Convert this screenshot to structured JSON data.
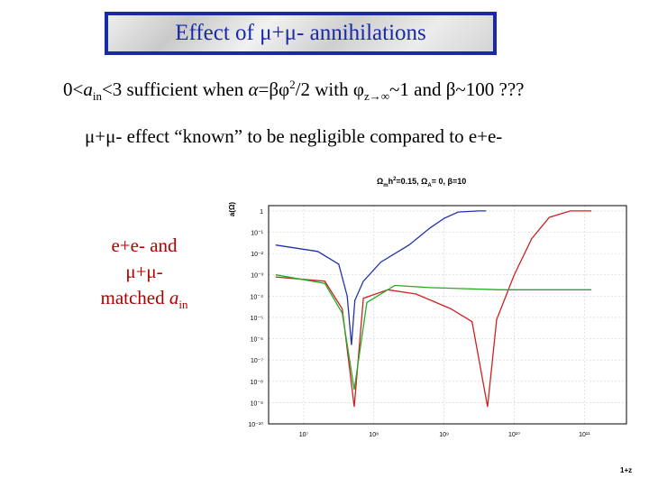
{
  "slide": {
    "title": "Effect of μ+μ- annihilations",
    "line1": {
      "a": "0<",
      "a_sym": "a",
      "a_sub": "in",
      "b": "<3 sufficient when ",
      "alpha": "α",
      "eq": "=βφ",
      "sq": "2",
      "c": "/2 with ",
      "phi": "φ",
      "phi_sub": "z→∞",
      "d": "~1 and ",
      "beta": "β",
      "e": "~100 ???"
    },
    "line2": "μ+μ- effect “known” to be negligible compared to e+e-",
    "side_note": {
      "l1": "e+e- and",
      "l2": "μ+μ-",
      "l3": "matched ",
      "a_sym": "a",
      "a_sub": "in"
    }
  },
  "chart_data": {
    "type": "line",
    "title_parts": {
      "a": "Ω",
      "a_sub": "m",
      "b": "h",
      "b_sup": "2",
      "c": "=0.15, Ω",
      "c_sub": "A",
      "d": "= 0, β=10"
    },
    "ylabel": "a(Ω)",
    "xlabel": "1+z",
    "y_ticks": [
      "1",
      "10⁻¹",
      "10⁻²",
      "10⁻³",
      "10⁻⁴",
      "10⁻⁵",
      "10⁻⁶",
      "10⁻⁷",
      "10⁻⁸",
      "10⁻⁹",
      "10⁻¹⁰"
    ],
    "x_ticks": [
      "10⁷",
      "10⁸",
      "10⁹",
      "10¹⁰",
      "10¹¹"
    ],
    "xlim_log10": [
      6.5,
      11.6
    ],
    "ylim_log10": [
      -10,
      0.25
    ],
    "grid": true,
    "series": [
      {
        "color": "#2233aa",
        "points": [
          [
            6.6,
            -1.6
          ],
          [
            7.2,
            -1.9
          ],
          [
            7.5,
            -2.5
          ],
          [
            7.62,
            -4.0
          ],
          [
            7.68,
            -6.3
          ],
          [
            7.73,
            -4.2
          ],
          [
            7.85,
            -3.3
          ],
          [
            8.1,
            -2.4
          ],
          [
            8.5,
            -1.6
          ],
          [
            8.8,
            -0.8
          ],
          [
            9.0,
            -0.35
          ],
          [
            9.2,
            -0.05
          ],
          [
            9.5,
            0
          ],
          [
            9.6,
            0
          ]
        ]
      },
      {
        "color": "#cc2222",
        "points": [
          [
            6.6,
            -3.1
          ],
          [
            7.3,
            -3.3
          ],
          [
            7.55,
            -4.6
          ],
          [
            7.72,
            -9.2
          ],
          [
            7.85,
            -4.1
          ],
          [
            8.2,
            -3.7
          ],
          [
            8.6,
            -3.9
          ],
          [
            9.1,
            -4.6
          ],
          [
            9.4,
            -5.2
          ],
          [
            9.62,
            -9.2
          ],
          [
            9.75,
            -5.1
          ],
          [
            10.0,
            -3.0
          ],
          [
            10.25,
            -1.3
          ],
          [
            10.5,
            -0.3
          ],
          [
            10.8,
            0
          ],
          [
            11.1,
            0
          ]
        ]
      },
      {
        "color": "#22aa22",
        "points": [
          [
            6.6,
            -3.0
          ],
          [
            7.3,
            -3.4
          ],
          [
            7.55,
            -4.8
          ],
          [
            7.72,
            -8.4
          ],
          [
            7.9,
            -4.3
          ],
          [
            8.3,
            -3.5
          ],
          [
            8.8,
            -3.6
          ],
          [
            9.3,
            -3.65
          ],
          [
            9.8,
            -3.7
          ],
          [
            10.3,
            -3.7
          ],
          [
            11.1,
            -3.7
          ]
        ]
      }
    ]
  }
}
